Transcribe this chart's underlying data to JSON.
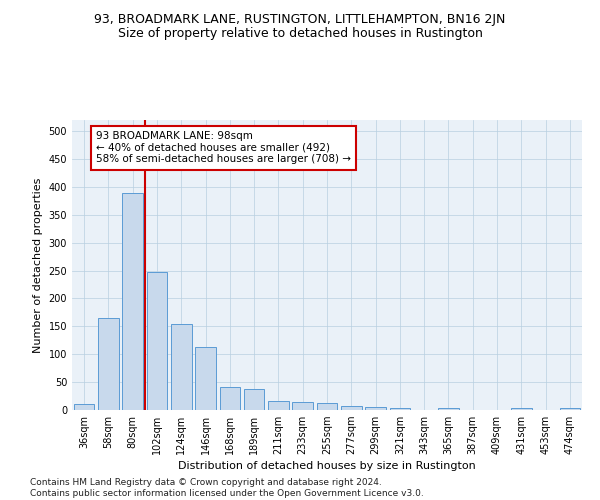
{
  "title": "93, BROADMARK LANE, RUSTINGTON, LITTLEHAMPTON, BN16 2JN",
  "subtitle": "Size of property relative to detached houses in Rustington",
  "xlabel": "Distribution of detached houses by size in Rustington",
  "ylabel": "Number of detached properties",
  "categories": [
    "36sqm",
    "58sqm",
    "80sqm",
    "102sqm",
    "124sqm",
    "146sqm",
    "168sqm",
    "189sqm",
    "211sqm",
    "233sqm",
    "255sqm",
    "277sqm",
    "299sqm",
    "321sqm",
    "343sqm",
    "365sqm",
    "387sqm",
    "409sqm",
    "431sqm",
    "453sqm",
    "474sqm"
  ],
  "values": [
    10,
    165,
    390,
    248,
    155,
    113,
    42,
    38,
    17,
    14,
    13,
    8,
    6,
    3,
    0,
    3,
    0,
    0,
    3,
    0,
    3
  ],
  "bar_color": "#c8d9ec",
  "bar_edge_color": "#5b9bd5",
  "vline_color": "#cc0000",
  "annotation_text": "93 BROADMARK LANE: 98sqm\n← 40% of detached houses are smaller (492)\n58% of semi-detached houses are larger (708) →",
  "annotation_box_color": "#ffffff",
  "annotation_box_edge_color": "#cc0000",
  "ylim": [
    0,
    520
  ],
  "yticks": [
    0,
    50,
    100,
    150,
    200,
    250,
    300,
    350,
    400,
    450,
    500
  ],
  "footer": "Contains HM Land Registry data © Crown copyright and database right 2024.\nContains public sector information licensed under the Open Government Licence v3.0.",
  "plot_background_color": "#eaf1f8",
  "title_fontsize": 9,
  "subtitle_fontsize": 9,
  "tick_fontsize": 7,
  "ylabel_fontsize": 8,
  "xlabel_fontsize": 8,
  "footer_fontsize": 6.5,
  "annotation_fontsize": 7.5
}
